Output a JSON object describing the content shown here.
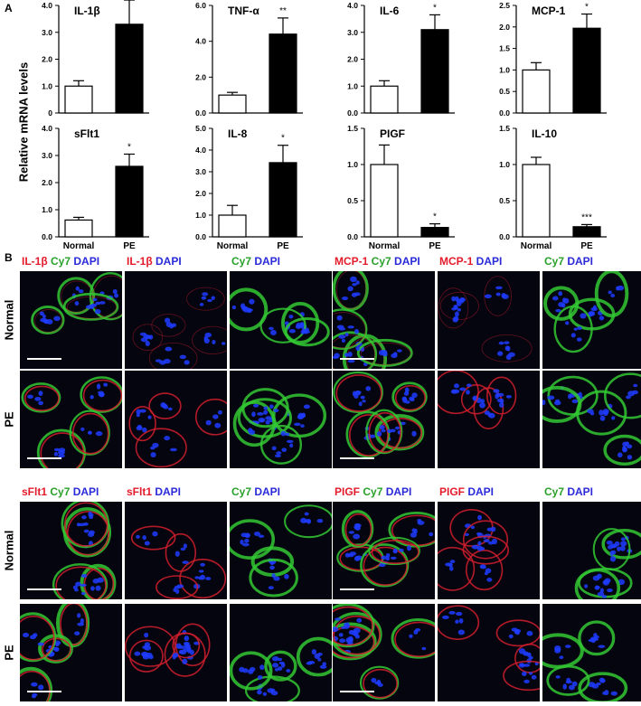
{
  "panel_a_label": "A",
  "panel_b_label": "B",
  "ylabel": "Relative mRNA levels",
  "chart_data": [
    {
      "type": "bar",
      "title": "IL-1β",
      "categories": [
        "Normal",
        "PE"
      ],
      "values": [
        1.0,
        3.3
      ],
      "errors": [
        0.2,
        0.9
      ],
      "significance": "*",
      "ylim": [
        0,
        4.0
      ],
      "yticks": [
        "0",
        "1.0",
        "2.0",
        "3.0",
        "4.0"
      ],
      "tick_values": [
        0,
        1,
        2,
        3,
        4
      ],
      "show_xticks": false,
      "fills": [
        "#ffffff",
        "#000000"
      ]
    },
    {
      "type": "bar",
      "title": "TNF-α",
      "categories": [
        "Normal",
        "PE"
      ],
      "values": [
        1.0,
        4.4
      ],
      "errors": [
        0.15,
        0.9
      ],
      "significance": "**",
      "ylim": [
        0,
        6.0
      ],
      "yticks": [
        "0.0",
        "2.0",
        "4.0",
        "6.0"
      ],
      "tick_values": [
        0,
        2,
        4,
        6
      ],
      "show_xticks": false,
      "fills": [
        "#ffffff",
        "#000000"
      ]
    },
    {
      "type": "bar",
      "title": "IL-6",
      "categories": [
        "Normal",
        "PE"
      ],
      "values": [
        1.0,
        3.1
      ],
      "errors": [
        0.2,
        0.55
      ],
      "significance": "*",
      "ylim": [
        0,
        4.0
      ],
      "yticks": [
        "0.0",
        "1.0",
        "2.0",
        "3.0",
        "4.0"
      ],
      "tick_values": [
        0,
        1,
        2,
        3,
        4
      ],
      "show_xticks": false,
      "fills": [
        "#ffffff",
        "#000000"
      ]
    },
    {
      "type": "bar",
      "title": "MCP-1",
      "categories": [
        "Normal",
        "PE"
      ],
      "values": [
        1.0,
        1.97
      ],
      "errors": [
        0.17,
        0.33
      ],
      "significance": "*",
      "ylim": [
        0,
        2.5
      ],
      "yticks": [
        "0.0",
        "0.5",
        "1.0",
        "1.5",
        "2.0",
        "2.5"
      ],
      "tick_values": [
        0,
        0.5,
        1,
        1.5,
        2,
        2.5
      ],
      "show_xticks": false,
      "fills": [
        "#ffffff",
        "#000000"
      ]
    },
    {
      "type": "bar",
      "title": "sFlt1",
      "categories": [
        "Normal",
        "PE"
      ],
      "values": [
        0.62,
        2.6
      ],
      "errors": [
        0.1,
        0.45
      ],
      "significance": "*",
      "ylim": [
        0,
        4.0
      ],
      "yticks": [
        "0.0",
        "1.0",
        "2.0",
        "3.0",
        "4.0"
      ],
      "tick_values": [
        0,
        1,
        2,
        3,
        4
      ],
      "show_xticks": true,
      "fills": [
        "#ffffff",
        "#000000"
      ]
    },
    {
      "type": "bar",
      "title": "IL-8",
      "categories": [
        "Normal",
        "PE"
      ],
      "values": [
        1.0,
        3.42
      ],
      "errors": [
        0.45,
        0.8
      ],
      "significance": "*",
      "ylim": [
        0,
        5.0
      ],
      "yticks": [
        "0.0",
        "1.0",
        "2.0",
        "3.0",
        "4.0",
        "5.0"
      ],
      "tick_values": [
        0,
        1,
        2,
        3,
        4,
        5
      ],
      "show_xticks": true,
      "fills": [
        "#ffffff",
        "#000000"
      ]
    },
    {
      "type": "bar",
      "title": "PIGF",
      "categories": [
        "Normal",
        "PE"
      ],
      "values": [
        1.0,
        0.13
      ],
      "errors": [
        0.27,
        0.05
      ],
      "significance": "*",
      "ylim": [
        0,
        1.5
      ],
      "yticks": [
        "0.0",
        "0.5",
        "1.0",
        "1.5"
      ],
      "tick_values": [
        0,
        0.5,
        1,
        1.5
      ],
      "show_xticks": true,
      "fills": [
        "#ffffff",
        "#000000"
      ]
    },
    {
      "type": "bar",
      "title": "IL-10",
      "categories": [
        "Normal",
        "PE"
      ],
      "values": [
        1.0,
        0.14
      ],
      "errors": [
        0.1,
        0.03
      ],
      "significance": "***",
      "ylim": [
        0,
        1.5
      ],
      "yticks": [
        "0.0",
        "0.5",
        "1.0",
        "1.5"
      ],
      "tick_values": [
        0,
        0.5,
        1,
        1.5
      ],
      "show_xticks": true,
      "fills": [
        "#ffffff",
        "#000000"
      ]
    }
  ],
  "micrographs": {
    "row_labels": [
      "Normal",
      "PE",
      "Normal",
      "PE"
    ],
    "groups": [
      {
        "stain": "IL-1β",
        "tiles": [
          [
            {
              "t": "IL-1β",
              "c": "red"
            },
            {
              "t": " Cy7",
              "c": "green"
            },
            {
              "t": " DAPI",
              "c": "blue"
            }
          ],
          [
            {
              "t": "IL-1β",
              "c": "red"
            },
            {
              "t": " DAPI",
              "c": "blue"
            }
          ],
          [
            {
              "t": "Cy7",
              "c": "green"
            },
            {
              "t": " DAPI",
              "c": "blue"
            }
          ]
        ]
      },
      {
        "stain": "MCP-1",
        "tiles": [
          [
            {
              "t": "MCP-1",
              "c": "red"
            },
            {
              "t": " Cy7",
              "c": "green"
            },
            {
              "t": " DAPI",
              "c": "blue"
            }
          ],
          [
            {
              "t": "MCP-1",
              "c": "red"
            },
            {
              "t": " DAPI",
              "c": "blue"
            }
          ],
          [
            {
              "t": "Cy7",
              "c": "green"
            },
            {
              "t": " DAPI",
              "c": "blue"
            }
          ]
        ]
      },
      {
        "stain": "sFlt1",
        "tiles": [
          [
            {
              "t": "sFlt1",
              "c": "red"
            },
            {
              "t": " Cy7",
              "c": "green"
            },
            {
              "t": " DAPI",
              "c": "blue"
            }
          ],
          [
            {
              "t": "sFlt1",
              "c": "red"
            },
            {
              "t": " DAPI",
              "c": "blue"
            }
          ],
          [
            {
              "t": "Cy7",
              "c": "green"
            },
            {
              "t": " DAPI",
              "c": "blue"
            }
          ]
        ]
      },
      {
        "stain": "PIGF",
        "tiles": [
          [
            {
              "t": "PIGF",
              "c": "red"
            },
            {
              "t": " Cy7",
              "c": "green"
            },
            {
              "t": " DAPI",
              "c": "blue"
            }
          ],
          [
            {
              "t": "PIGF",
              "c": "red"
            },
            {
              "t": " DAPI",
              "c": "blue"
            }
          ],
          [
            {
              "t": "Cy7",
              "c": "green"
            },
            {
              "t": " DAPI",
              "c": "blue"
            }
          ]
        ]
      }
    ]
  },
  "colors": {
    "red": "#e31b2a",
    "green": "#2aa12a",
    "blue": "#2a2ad8",
    "tile_bg": "#050510",
    "dapi": "#1e3cff",
    "cy7": "#32c832",
    "stain": "#d21e2d"
  }
}
